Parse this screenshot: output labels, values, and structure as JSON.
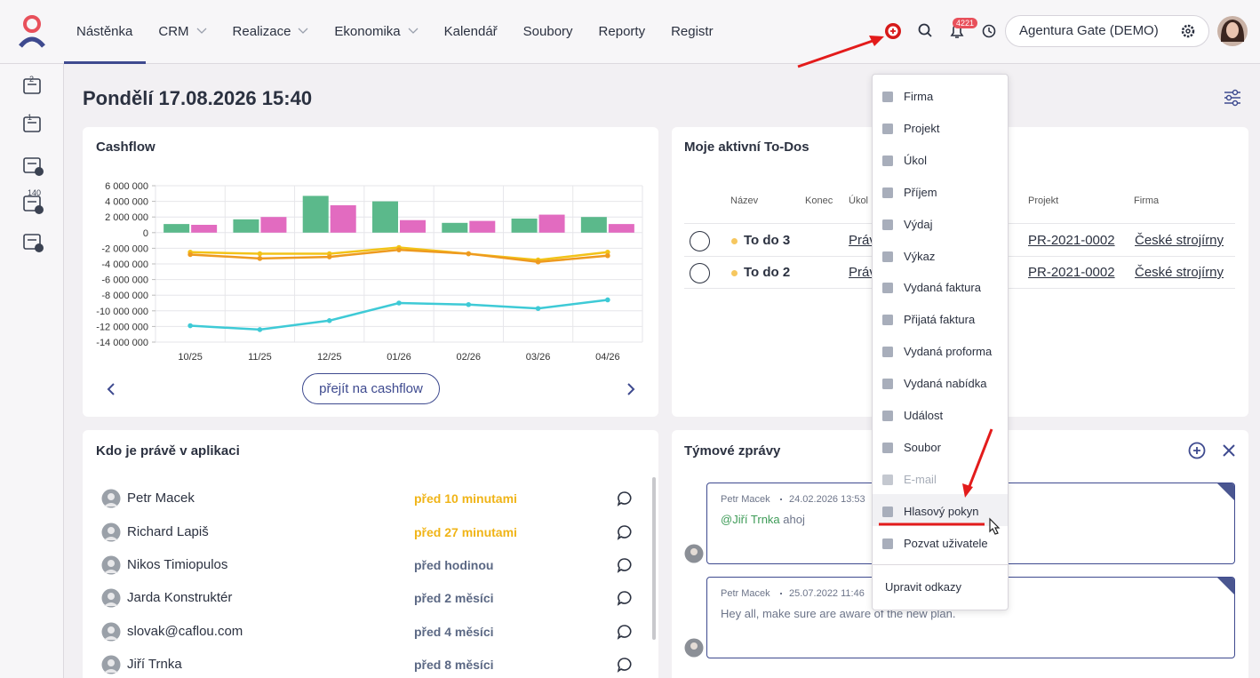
{
  "nav": {
    "items": [
      "Nástěnka",
      "CRM",
      "Realizace",
      "Ekonomika",
      "Kalendář",
      "Soubory",
      "Reporty",
      "Registr"
    ],
    "notifications": "4221",
    "organization": "Agentura Gate (DEMO)"
  },
  "sidebar": {
    "badges": [
      "2",
      "1",
      "140"
    ]
  },
  "heading": "Pondělí 17.08.2026 15:40",
  "cashflow": {
    "title": "Cashflow",
    "button": "přejít na cashflow"
  },
  "chart_data": {
    "type": "bar",
    "categories": [
      "10/25",
      "11/25",
      "12/25",
      "01/26",
      "02/26",
      "03/26",
      "04/26"
    ],
    "series": [
      {
        "type": "bar",
        "color": "#5bb98b",
        "values": [
          1100000,
          1700000,
          4700000,
          4000000,
          1250000,
          1800000,
          2000000
        ]
      },
      {
        "type": "bar",
        "color": "#e26bc0",
        "values": [
          1000000,
          2000000,
          3500000,
          1600000,
          1500000,
          2300000,
          1100000
        ]
      },
      {
        "type": "line",
        "color": "#f2c318",
        "values": [
          -2500000,
          -2700000,
          -2700000,
          -1900000,
          -2700000,
          -3500000,
          -2500000
        ]
      },
      {
        "type": "line",
        "color": "#ee9a1f",
        "values": [
          -2800000,
          -3300000,
          -3100000,
          -2200000,
          -2700000,
          -3750000,
          -2950000
        ]
      },
      {
        "type": "line",
        "color": "#3ecad6",
        "values": [
          -11900000,
          -12400000,
          -11250000,
          -9000000,
          -9200000,
          -9700000,
          -8600000
        ]
      }
    ],
    "ylim": [
      -14000000,
      6000000
    ],
    "yticks": [
      {
        "value": 6000000,
        "label": "6 000 000"
      },
      {
        "value": 4000000,
        "label": "4 000 000"
      },
      {
        "value": 2000000,
        "label": "2 000 000"
      },
      0,
      {
        "value": -2000000,
        "label": "-2 000 000"
      },
      {
        "value": -4000000,
        "label": "-4 000 000"
      },
      {
        "value": -6000000,
        "label": "-6 000 000"
      },
      {
        "value": -8000000,
        "label": "-8 000 000"
      },
      {
        "value": -10000000,
        "label": "-10 000 000"
      },
      {
        "value": -12000000,
        "label": "-12 000 000"
      },
      {
        "value": -14000000,
        "label": "-14 000 000"
      }
    ],
    "grid": true
  },
  "todos": {
    "title": "Moje aktivní To-Dos",
    "columns": [
      "Název",
      "Konec",
      "Úkol",
      "Projekt",
      "Firma"
    ],
    "rows": [
      {
        "name": "To do 3",
        "task": "Práv",
        "project": "PR-2021-0002",
        "company": "České strojírny"
      },
      {
        "name": "To do 2",
        "task": "Práv",
        "project": "PR-2021-0002",
        "company": "České strojírny"
      }
    ]
  },
  "online": {
    "title": "Kdo je právě v aplikaci",
    "rows": [
      {
        "name": "Petr Macek",
        "time": "před 10 minutami"
      },
      {
        "name": "Richard Lapiš",
        "time": "před 27 minutami"
      },
      {
        "name": "Nikos Timiopulos",
        "time": "před hodinou"
      },
      {
        "name": "Jarda Konstruktér",
        "time": "před 2 měsíci"
      },
      {
        "name": "slovak@caflou.com",
        "time": "před 4 měsíci"
      },
      {
        "name": "Jiří Trnka",
        "time": "před 8 měsíci"
      }
    ]
  },
  "team": {
    "title": "Týmové zprávy",
    "messages": [
      {
        "author": "Petr Macek",
        "date": "24.02.2026 13:53",
        "mention": "@Jiří Trnka",
        "text": "ahoj"
      },
      {
        "author": "Petr Macek",
        "date": "25.07.2022 11:46",
        "text": "Hey all, make sure are aware of the new plan."
      }
    ]
  },
  "menu": {
    "items": [
      "Firma",
      "Projekt",
      "Úkol",
      "Příjem",
      "Výdaj",
      "Výkaz",
      "Vydaná faktura",
      "Přijatá faktura",
      "Vydaná proforma",
      "Vydaná nabídka",
      "Událost",
      "Soubor",
      "E-mail",
      "Hlasový pokyn",
      "Pozvat uživatele"
    ],
    "footer": "Upravit odkazy"
  }
}
